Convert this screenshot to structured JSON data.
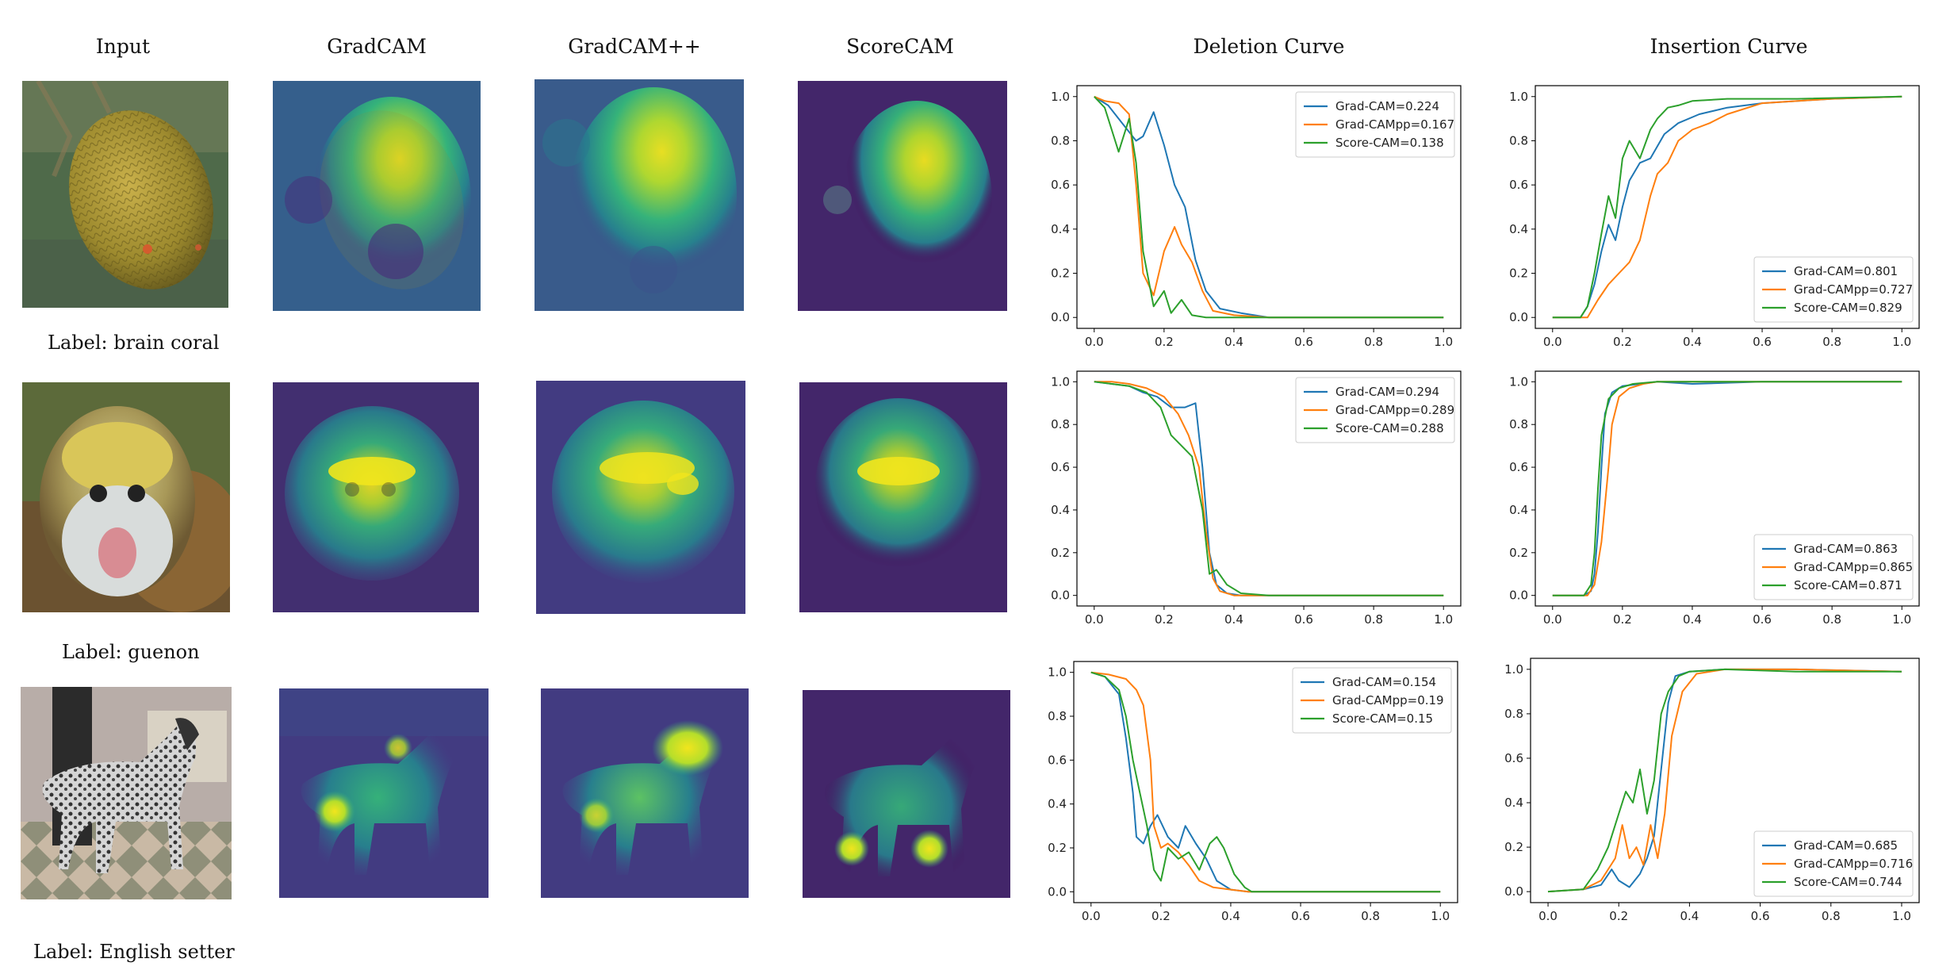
{
  "column_headers": {
    "input": "Input",
    "gradcam": "GradCAM",
    "gradcampp": "GradCAM++",
    "scorecam": "ScoreCAM",
    "deletion": "Deletion Curve",
    "insertion": "Insertion Curve"
  },
  "rows": [
    {
      "label": "Label: brain coral"
    },
    {
      "label": "Label: guenon"
    },
    {
      "label": "Label: English setter"
    }
  ],
  "colors": {
    "gradcam": "#1f77b4",
    "gradcampp": "#ff7f0e",
    "scorecam": "#2ca02c"
  },
  "chart_data": [
    {
      "type": "line",
      "title": "Deletion Curve",
      "row": 1,
      "xlim": [
        0,
        1
      ],
      "ylim": [
        0,
        1
      ],
      "xticks": [
        "0.0",
        "0.2",
        "0.4",
        "0.6",
        "0.8",
        "1.0"
      ],
      "yticks": [
        "0.0",
        "0.2",
        "0.4",
        "0.6",
        "0.8",
        "1.0"
      ],
      "legend_position": "top-right",
      "series": [
        {
          "name": "Grad-CAM=0.224",
          "color": "#1f77b4",
          "x": [
            0,
            0.04,
            0.08,
            0.12,
            0.14,
            0.17,
            0.2,
            0.23,
            0.26,
            0.29,
            0.32,
            0.36,
            0.42,
            0.5,
            0.6,
            1.0
          ],
          "y": [
            1.0,
            0.96,
            0.88,
            0.8,
            0.82,
            0.93,
            0.78,
            0.6,
            0.5,
            0.26,
            0.12,
            0.04,
            0.02,
            0.0,
            0.0,
            0.0
          ]
        },
        {
          "name": "Grad-CAMpp=0.167",
          "color": "#ff7f0e",
          "x": [
            0,
            0.03,
            0.07,
            0.1,
            0.12,
            0.14,
            0.17,
            0.2,
            0.23,
            0.25,
            0.28,
            0.31,
            0.34,
            0.4,
            0.5,
            1.0
          ],
          "y": [
            1.0,
            0.98,
            0.97,
            0.92,
            0.6,
            0.2,
            0.1,
            0.3,
            0.41,
            0.33,
            0.25,
            0.12,
            0.03,
            0.01,
            0.0,
            0.0
          ]
        },
        {
          "name": "Score-CAM=0.138",
          "color": "#2ca02c",
          "x": [
            0,
            0.03,
            0.05,
            0.07,
            0.1,
            0.12,
            0.14,
            0.17,
            0.2,
            0.22,
            0.25,
            0.28,
            0.32,
            0.4,
            1.0
          ],
          "y": [
            1.0,
            0.95,
            0.85,
            0.75,
            0.9,
            0.7,
            0.3,
            0.05,
            0.12,
            0.02,
            0.08,
            0.01,
            0.0,
            0.0,
            0.0
          ]
        }
      ]
    },
    {
      "type": "line",
      "title": "Insertion Curve",
      "row": 1,
      "xlim": [
        0,
        1
      ],
      "ylim": [
        0,
        1
      ],
      "xticks": [
        "0.0",
        "0.2",
        "0.4",
        "0.6",
        "0.8",
        "1.0"
      ],
      "yticks": [
        "0.0",
        "0.2",
        "0.4",
        "0.6",
        "0.8",
        "1.0"
      ],
      "legend_position": "bottom-right",
      "series": [
        {
          "name": "Grad-CAM=0.801",
          "color": "#1f77b4",
          "x": [
            0,
            0.08,
            0.1,
            0.12,
            0.14,
            0.16,
            0.18,
            0.2,
            0.22,
            0.25,
            0.28,
            0.32,
            0.36,
            0.42,
            0.5,
            0.6,
            0.8,
            1.0
          ],
          "y": [
            0,
            0,
            0.05,
            0.15,
            0.3,
            0.42,
            0.35,
            0.5,
            0.62,
            0.7,
            0.72,
            0.83,
            0.88,
            0.92,
            0.95,
            0.97,
            0.99,
            1.0
          ]
        },
        {
          "name": "Grad-CAMpp=0.727",
          "color": "#ff7f0e",
          "x": [
            0,
            0.1,
            0.13,
            0.16,
            0.19,
            0.22,
            0.25,
            0.28,
            0.3,
            0.33,
            0.36,
            0.4,
            0.45,
            0.5,
            0.6,
            0.8,
            1.0
          ],
          "y": [
            0,
            0,
            0.08,
            0.15,
            0.2,
            0.25,
            0.35,
            0.55,
            0.65,
            0.7,
            0.8,
            0.85,
            0.88,
            0.92,
            0.97,
            0.99,
            1.0
          ]
        },
        {
          "name": "Score-CAM=0.829",
          "color": "#2ca02c",
          "x": [
            0,
            0.08,
            0.1,
            0.12,
            0.14,
            0.16,
            0.18,
            0.2,
            0.22,
            0.25,
            0.28,
            0.3,
            0.33,
            0.36,
            0.4,
            0.5,
            0.7,
            1.0
          ],
          "y": [
            0,
            0,
            0.05,
            0.2,
            0.38,
            0.55,
            0.45,
            0.72,
            0.8,
            0.72,
            0.85,
            0.9,
            0.95,
            0.96,
            0.98,
            0.99,
            0.99,
            1.0
          ]
        }
      ]
    },
    {
      "type": "line",
      "title": "Deletion Curve",
      "row": 2,
      "xlim": [
        0,
        1
      ],
      "ylim": [
        0,
        1
      ],
      "xticks": [
        "0.0",
        "0.2",
        "0.4",
        "0.6",
        "0.8",
        "1.0"
      ],
      "yticks": [
        "0.0",
        "0.2",
        "0.4",
        "0.6",
        "0.8",
        "1.0"
      ],
      "legend_position": "top-right",
      "series": [
        {
          "name": "Grad-CAM=0.294",
          "color": "#1f77b4",
          "x": [
            0,
            0.05,
            0.1,
            0.14,
            0.18,
            0.22,
            0.26,
            0.29,
            0.31,
            0.33,
            0.35,
            0.38,
            0.42,
            0.5,
            1.0
          ],
          "y": [
            1.0,
            0.99,
            0.98,
            0.95,
            0.93,
            0.88,
            0.88,
            0.9,
            0.6,
            0.2,
            0.05,
            0.01,
            0.0,
            0.0,
            0.0
          ]
        },
        {
          "name": "Grad-CAMpp=0.289",
          "color": "#ff7f0e",
          "x": [
            0,
            0.05,
            0.1,
            0.15,
            0.2,
            0.24,
            0.27,
            0.3,
            0.32,
            0.34,
            0.36,
            0.4,
            0.5,
            1.0
          ],
          "y": [
            1.0,
            1.0,
            0.99,
            0.97,
            0.93,
            0.85,
            0.75,
            0.6,
            0.3,
            0.08,
            0.02,
            0.0,
            0.0,
            0.0
          ]
        },
        {
          "name": "Score-CAM=0.288",
          "color": "#2ca02c",
          "x": [
            0,
            0.05,
            0.1,
            0.15,
            0.19,
            0.22,
            0.25,
            0.28,
            0.31,
            0.33,
            0.35,
            0.38,
            0.42,
            0.5,
            1.0
          ],
          "y": [
            1.0,
            0.99,
            0.98,
            0.95,
            0.88,
            0.75,
            0.7,
            0.65,
            0.4,
            0.1,
            0.12,
            0.05,
            0.01,
            0.0,
            0.0
          ]
        }
      ]
    },
    {
      "type": "line",
      "title": "Insertion Curve",
      "row": 2,
      "xlim": [
        0,
        1
      ],
      "ylim": [
        0,
        1
      ],
      "xticks": [
        "0.0",
        "0.2",
        "0.4",
        "0.6",
        "0.8",
        "1.0"
      ],
      "yticks": [
        "0.0",
        "0.2",
        "0.4",
        "0.6",
        "0.8",
        "1.0"
      ],
      "legend_position": "bottom-right",
      "series": [
        {
          "name": "Grad-CAM=0.863",
          "color": "#1f77b4",
          "x": [
            0,
            0.09,
            0.11,
            0.12,
            0.13,
            0.14,
            0.15,
            0.17,
            0.2,
            0.25,
            0.3,
            0.4,
            0.6,
            1.0
          ],
          "y": [
            0,
            0,
            0.02,
            0.1,
            0.3,
            0.6,
            0.85,
            0.95,
            0.98,
            0.99,
            1.0,
            0.99,
            1.0,
            1.0
          ]
        },
        {
          "name": "Grad-CAMpp=0.865",
          "color": "#ff7f0e",
          "x": [
            0,
            0.1,
            0.12,
            0.14,
            0.16,
            0.17,
            0.19,
            0.22,
            0.26,
            0.3,
            0.4,
            0.6,
            1.0
          ],
          "y": [
            0,
            0,
            0.05,
            0.25,
            0.6,
            0.8,
            0.93,
            0.97,
            0.99,
            1.0,
            1.0,
            1.0,
            1.0
          ]
        },
        {
          "name": "Score-CAM=0.871",
          "color": "#2ca02c",
          "x": [
            0,
            0.09,
            0.11,
            0.12,
            0.13,
            0.14,
            0.16,
            0.19,
            0.23,
            0.3,
            0.4,
            0.6,
            1.0
          ],
          "y": [
            0,
            0,
            0.05,
            0.2,
            0.5,
            0.75,
            0.92,
            0.97,
            0.99,
            1.0,
            1.0,
            1.0,
            1.0
          ]
        }
      ]
    },
    {
      "type": "line",
      "title": "Deletion Curve",
      "row": 3,
      "xlim": [
        0,
        1
      ],
      "ylim": [
        0,
        1
      ],
      "xticks": [
        "0.0",
        "0.2",
        "0.4",
        "0.6",
        "0.8",
        "1.0"
      ],
      "yticks": [
        "0.0",
        "0.2",
        "0.4",
        "0.6",
        "0.8",
        "1.0"
      ],
      "legend_position": "top-right",
      "series": [
        {
          "name": "Grad-CAM=0.154",
          "color": "#1f77b4",
          "x": [
            0,
            0.04,
            0.08,
            0.1,
            0.12,
            0.13,
            0.15,
            0.17,
            0.19,
            0.22,
            0.25,
            0.27,
            0.3,
            0.33,
            0.36,
            0.4,
            0.45,
            1.0
          ],
          "y": [
            1.0,
            0.98,
            0.9,
            0.7,
            0.45,
            0.25,
            0.22,
            0.3,
            0.35,
            0.25,
            0.2,
            0.3,
            0.22,
            0.15,
            0.05,
            0.01,
            0.0,
            0.0
          ]
        },
        {
          "name": "Grad-CAMpp=0.19",
          "color": "#ff7f0e",
          "x": [
            0,
            0.05,
            0.1,
            0.13,
            0.15,
            0.17,
            0.18,
            0.2,
            0.22,
            0.25,
            0.28,
            0.31,
            0.35,
            0.4,
            0.45,
            1.0
          ],
          "y": [
            1.0,
            0.99,
            0.97,
            0.92,
            0.85,
            0.6,
            0.3,
            0.2,
            0.22,
            0.18,
            0.12,
            0.05,
            0.02,
            0.01,
            0.0,
            0.0
          ]
        },
        {
          "name": "Score-CAM=0.15",
          "color": "#2ca02c",
          "x": [
            0,
            0.04,
            0.08,
            0.1,
            0.12,
            0.14,
            0.16,
            0.18,
            0.2,
            0.22,
            0.25,
            0.28,
            0.31,
            0.34,
            0.36,
            0.38,
            0.41,
            0.44,
            0.46,
            1.0
          ],
          "y": [
            1.0,
            0.98,
            0.92,
            0.8,
            0.6,
            0.45,
            0.3,
            0.1,
            0.05,
            0.2,
            0.15,
            0.18,
            0.1,
            0.22,
            0.25,
            0.2,
            0.08,
            0.02,
            0.0,
            0.0
          ]
        }
      ]
    },
    {
      "type": "line",
      "title": "Insertion Curve",
      "row": 3,
      "xlim": [
        0,
        1
      ],
      "ylim": [
        0,
        1
      ],
      "xticks": [
        "0.0",
        "0.2",
        "0.4",
        "0.6",
        "0.8",
        "1.0"
      ],
      "yticks": [
        "0.0",
        "0.2",
        "0.4",
        "0.6",
        "0.8",
        "1.0"
      ],
      "legend_position": "bottom-right",
      "series": [
        {
          "name": "Grad-CAM=0.685",
          "color": "#1f77b4",
          "x": [
            0,
            0.1,
            0.15,
            0.18,
            0.2,
            0.23,
            0.26,
            0.28,
            0.3,
            0.32,
            0.34,
            0.36,
            0.4,
            0.5,
            0.7,
            1.0
          ],
          "y": [
            0,
            0.01,
            0.03,
            0.1,
            0.05,
            0.02,
            0.08,
            0.15,
            0.25,
            0.55,
            0.85,
            0.97,
            0.99,
            1.0,
            1.0,
            0.99
          ]
        },
        {
          "name": "Grad-CAMpp=0.716",
          "color": "#ff7f0e",
          "x": [
            0,
            0.1,
            0.15,
            0.19,
            0.21,
            0.23,
            0.25,
            0.27,
            0.29,
            0.31,
            0.33,
            0.35,
            0.38,
            0.42,
            0.5,
            0.7,
            1.0
          ],
          "y": [
            0,
            0.01,
            0.05,
            0.15,
            0.3,
            0.15,
            0.2,
            0.12,
            0.3,
            0.15,
            0.35,
            0.7,
            0.9,
            0.98,
            1.0,
            1.0,
            0.99
          ]
        },
        {
          "name": "Score-CAM=0.744",
          "color": "#2ca02c",
          "x": [
            0,
            0.1,
            0.14,
            0.17,
            0.2,
            0.22,
            0.24,
            0.26,
            0.28,
            0.3,
            0.32,
            0.34,
            0.37,
            0.4,
            0.5,
            0.7,
            1.0
          ],
          "y": [
            0,
            0.01,
            0.1,
            0.2,
            0.35,
            0.45,
            0.4,
            0.55,
            0.35,
            0.5,
            0.8,
            0.9,
            0.97,
            0.99,
            1.0,
            0.99,
            0.99
          ]
        }
      ]
    }
  ]
}
